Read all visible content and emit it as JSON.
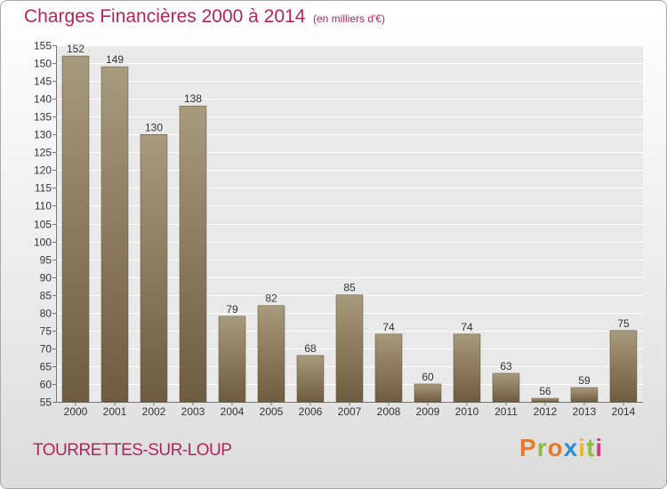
{
  "header": {
    "title": "Charges Financières 2000 à 2014",
    "subtitle": "(en milliers d'€)"
  },
  "footer": {
    "commune": "TOURRETTES-SUR-LOUP",
    "logo": "Proxiti"
  },
  "colors": {
    "title": "#b0265a",
    "bar_light": "#a89a7c",
    "bar_dark": "#6e5c40",
    "logo_letters": [
      "#e8792b",
      "#8cbd3f",
      "#e8792b",
      "#2c8fd6",
      "#f2b61d",
      "#8cbd3f",
      "#d23c7d"
    ]
  },
  "chart_data": {
    "type": "bar",
    "categories": [
      "2000",
      "2001",
      "2002",
      "2003",
      "2004",
      "2005",
      "2006",
      "2007",
      "2008",
      "2009",
      "2010",
      "2011",
      "2012",
      "2013",
      "2014"
    ],
    "values": [
      152,
      149,
      130,
      138,
      79,
      82,
      68,
      85,
      74,
      60,
      74,
      63,
      56,
      59,
      75
    ],
    "title": "Charges Financières 2000 à 2014",
    "subtitle": "(en milliers d'€)",
    "xlabel": "",
    "ylabel": "",
    "ylim": [
      55,
      155
    ],
    "yticks": [
      55,
      60,
      65,
      70,
      75,
      80,
      85,
      90,
      95,
      100,
      105,
      110,
      115,
      120,
      125,
      130,
      135,
      140,
      145,
      150,
      155
    ],
    "grid": true,
    "legend": "none"
  }
}
